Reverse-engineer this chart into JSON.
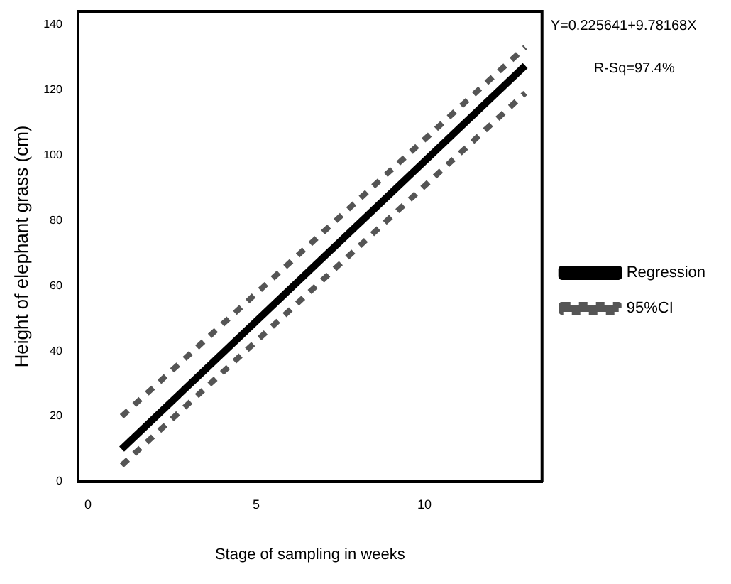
{
  "chart_data": {
    "type": "line",
    "xlabel": "Stage of sampling in weeks",
    "ylabel": "Height of elephant grass (cm)",
    "xlim": [
      -0.3,
      13.5
    ],
    "xticks": [
      0,
      5,
      10
    ],
    "ylim": [
      0,
      144
    ],
    "yticks": [
      0,
      20,
      40,
      60,
      80,
      100,
      120,
      140
    ],
    "grid": false,
    "legend": "right",
    "marker": "none",
    "annotations": [
      "Y=0.225641+9.78168X",
      "R-Sq=97.4%"
    ],
    "x": [
      1,
      13
    ],
    "series": [
      {
        "name": "Regression",
        "color": "#000000",
        "values": [
          10.0,
          127.4
        ],
        "line_style": "solid"
      },
      {
        "name": "95%CI",
        "color": "#555555",
        "values": [
          20,
          133
        ],
        "line_style": "dashed"
      },
      {
        "color": "#555555",
        "values": [
          5,
          119
        ],
        "line_style": "dashed"
      }
    ]
  }
}
